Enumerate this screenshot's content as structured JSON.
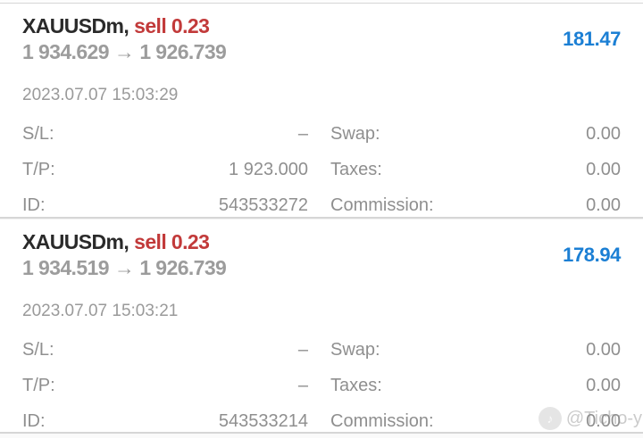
{
  "colors": {
    "symbol_dark": "#2a2a2a",
    "sell_red": "#c23a3a",
    "price_gray": "#9c9c9c",
    "profit_blue": "#1b7fd4",
    "date_gray": "#9a9a9a",
    "detail_gray": "#8f8f8f",
    "divider": "#d6d6d6"
  },
  "entries": [
    {
      "symbol": "XAUUSDm,",
      "side": "sell 0.23",
      "open_price": "1 934.629",
      "arrow": "→",
      "close_price": "1 926.739",
      "profit": "181.47",
      "datetime": "2023.07.07 15:03:29",
      "sl_label": "S/L:",
      "sl_value": "–",
      "swap_label": "Swap:",
      "swap_value": "0.00",
      "tp_label": "T/P:",
      "tp_value": "1 923.000",
      "taxes_label": "Taxes:",
      "taxes_value": "0.00",
      "id_label": "ID:",
      "id_value": "543533272",
      "commission_label": "Commission:",
      "commission_value": "0.00"
    },
    {
      "symbol": "XAUUSDm,",
      "side": "sell 0.23",
      "open_price": "1 934.519",
      "arrow": "→",
      "close_price": "1 926.739",
      "profit": "178.94",
      "datetime": "2023.07.07 15:03:21",
      "sl_label": "S/L:",
      "sl_value": "–",
      "swap_label": "Swap:",
      "swap_value": "0.00",
      "tp_label": "T/P:",
      "tp_value": "–",
      "taxes_label": "Taxes:",
      "taxes_value": "0.00",
      "id_label": "ID:",
      "id_value": "543533214",
      "commission_label": "Commission:",
      "commission_value": "0.00"
    }
  ],
  "watermark": {
    "icon_glyph": "♪",
    "text": "@Ticho-y"
  }
}
